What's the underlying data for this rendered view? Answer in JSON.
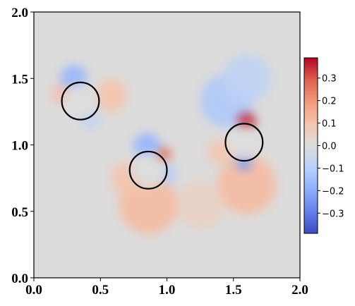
{
  "chart_data": {
    "type": "heatmap",
    "title": "",
    "xlabel": "",
    "ylabel": "",
    "xlim": [
      0.0,
      2.0
    ],
    "ylim": [
      0.0,
      2.0
    ],
    "x_ticks": [
      "0.0",
      "0.5",
      "1.0",
      "1.5",
      "2.0"
    ],
    "y_ticks": [
      "0.0",
      "0.5",
      "1.0",
      "1.5",
      "2.0"
    ],
    "grid": false,
    "colormap": "coolwarm",
    "colorbar": {
      "range": [
        -0.39,
        0.39
      ],
      "ticks": [
        "0.3",
        "0.2",
        "0.1",
        "0.0",
        "−0.1",
        "−0.2",
        "−0.3"
      ],
      "tick_values": [
        0.3,
        0.2,
        0.1,
        0.0,
        -0.1,
        -0.2,
        -0.3
      ],
      "placement": "right"
    },
    "circles": [
      {
        "cx": 0.35,
        "cy": 1.33,
        "r": 0.14
      },
      {
        "cx": 0.86,
        "cy": 0.81,
        "r": 0.14
      },
      {
        "cx": 1.58,
        "cy": 1.02,
        "r": 0.14
      }
    ],
    "circle_color": "#000000"
  }
}
